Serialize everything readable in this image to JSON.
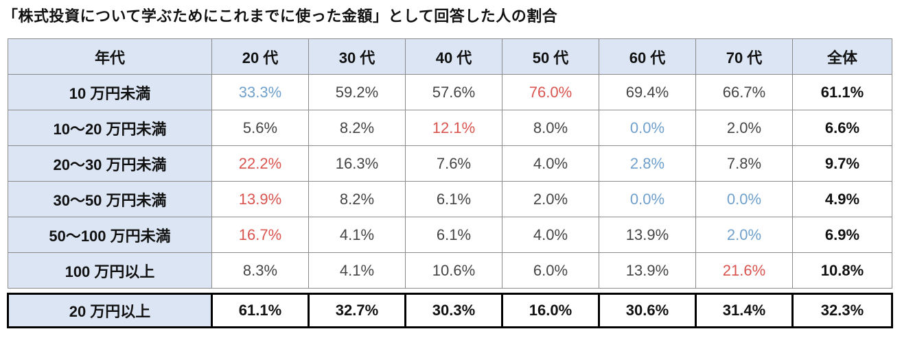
{
  "title": "「株式投資について学ぶためにこれまでに使った金額」として回答した人の割合",
  "table": {
    "headers": [
      "年代",
      "20 代",
      "30 代",
      "40 代",
      "50 代",
      "60 代",
      "70 代",
      "全体"
    ],
    "rows": [
      {
        "label": "10 万円未満",
        "cells": [
          {
            "value": "33.3%",
            "tone": "blue"
          },
          {
            "value": "59.2%",
            "tone": "normal"
          },
          {
            "value": "57.6%",
            "tone": "normal"
          },
          {
            "value": "76.0%",
            "tone": "red"
          },
          {
            "value": "69.4%",
            "tone": "normal"
          },
          {
            "value": "66.7%",
            "tone": "normal"
          }
        ],
        "total": "61.1%"
      },
      {
        "label": "10～20 万円未満",
        "cells": [
          {
            "value": "5.6%",
            "tone": "normal"
          },
          {
            "value": "8.2%",
            "tone": "normal"
          },
          {
            "value": "12.1%",
            "tone": "red"
          },
          {
            "value": "8.0%",
            "tone": "normal"
          },
          {
            "value": "0.0%",
            "tone": "blue"
          },
          {
            "value": "2.0%",
            "tone": "normal"
          }
        ],
        "total": "6.6%"
      },
      {
        "label": "20～30 万円未満",
        "cells": [
          {
            "value": "22.2%",
            "tone": "red"
          },
          {
            "value": "16.3%",
            "tone": "normal"
          },
          {
            "value": "7.6%",
            "tone": "normal"
          },
          {
            "value": "4.0%",
            "tone": "normal"
          },
          {
            "value": "2.8%",
            "tone": "blue"
          },
          {
            "value": "7.8%",
            "tone": "normal"
          }
        ],
        "total": "9.7%"
      },
      {
        "label": "30～50 万円未満",
        "cells": [
          {
            "value": "13.9%",
            "tone": "red"
          },
          {
            "value": "8.2%",
            "tone": "normal"
          },
          {
            "value": "6.1%",
            "tone": "normal"
          },
          {
            "value": "2.0%",
            "tone": "normal"
          },
          {
            "value": "0.0%",
            "tone": "blue"
          },
          {
            "value": "0.0%",
            "tone": "blue"
          }
        ],
        "total": "4.9%"
      },
      {
        "label": "50～100 万円未満",
        "cells": [
          {
            "value": "16.7%",
            "tone": "red"
          },
          {
            "value": "4.1%",
            "tone": "normal"
          },
          {
            "value": "6.1%",
            "tone": "normal"
          },
          {
            "value": "4.0%",
            "tone": "normal"
          },
          {
            "value": "13.9%",
            "tone": "normal"
          },
          {
            "value": "2.0%",
            "tone": "blue"
          }
        ],
        "total": "6.9%"
      },
      {
        "label": "100 万円以上",
        "cells": [
          {
            "value": "8.3%",
            "tone": "normal"
          },
          {
            "value": "4.1%",
            "tone": "normal"
          },
          {
            "value": "10.6%",
            "tone": "normal"
          },
          {
            "value": "6.0%",
            "tone": "normal"
          },
          {
            "value": "13.9%",
            "tone": "normal"
          },
          {
            "value": "21.6%",
            "tone": "red"
          }
        ],
        "total": "10.8%"
      }
    ],
    "footer": {
      "label": "20 万円以上",
      "cells": [
        "61.1%",
        "32.7%",
        "30.3%",
        "16.0%",
        "30.6%",
        "31.4%",
        "32.3%"
      ]
    }
  },
  "colors": {
    "header_bg": "#dbe5f3",
    "high": "#d9534f",
    "low": "#6fa0cb"
  }
}
